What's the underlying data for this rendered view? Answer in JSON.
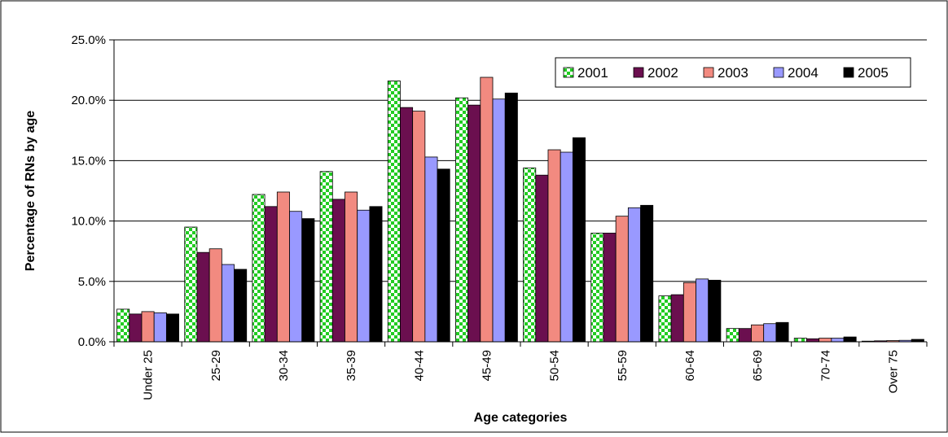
{
  "chart_data": {
    "type": "bar",
    "title": "",
    "xlabel": "Age categories",
    "ylabel": "Percentage of RNs by age",
    "ylim": [
      0,
      25
    ],
    "y_ticks": [
      {
        "value": 0,
        "label": "0.0%"
      },
      {
        "value": 5,
        "label": "5.0%"
      },
      {
        "value": 10,
        "label": "10.0%"
      },
      {
        "value": 15,
        "label": "15.0%"
      },
      {
        "value": 20,
        "label": "20.0%"
      },
      {
        "value": 25,
        "label": "25.0%"
      }
    ],
    "grid": true,
    "legend_position": "top-right",
    "categories": [
      "Under 25",
      "25-29",
      "30-34",
      "35-39",
      "40-44",
      "45-49",
      "50-54",
      "55-59",
      "60-64",
      "65-69",
      "70-74",
      "Over 75"
    ],
    "series": [
      {
        "name": "2001",
        "color": "#22cc22",
        "pattern": "green-checker",
        "values": [
          2.7,
          9.5,
          12.2,
          14.1,
          21.6,
          20.2,
          14.4,
          9.0,
          3.8,
          1.1,
          0.3,
          0.05
        ]
      },
      {
        "name": "2002",
        "color": "#6b0f4f",
        "values": [
          2.3,
          7.4,
          11.2,
          11.8,
          19.4,
          19.6,
          13.8,
          9.0,
          3.9,
          1.1,
          0.25,
          0.08
        ]
      },
      {
        "name": "2003",
        "color": "#f28a80",
        "values": [
          2.5,
          7.7,
          12.4,
          12.4,
          19.1,
          21.9,
          15.9,
          10.4,
          4.9,
          1.4,
          0.3,
          0.1
        ]
      },
      {
        "name": "2004",
        "color": "#9999ff",
        "values": [
          2.4,
          6.4,
          10.8,
          10.9,
          15.3,
          20.1,
          15.7,
          11.1,
          5.2,
          1.5,
          0.3,
          0.12
        ]
      },
      {
        "name": "2005",
        "color": "#000000",
        "values": [
          2.3,
          6.0,
          10.2,
          11.2,
          14.3,
          20.6,
          16.9,
          11.3,
          5.1,
          1.6,
          0.4,
          0.2
        ]
      }
    ]
  }
}
